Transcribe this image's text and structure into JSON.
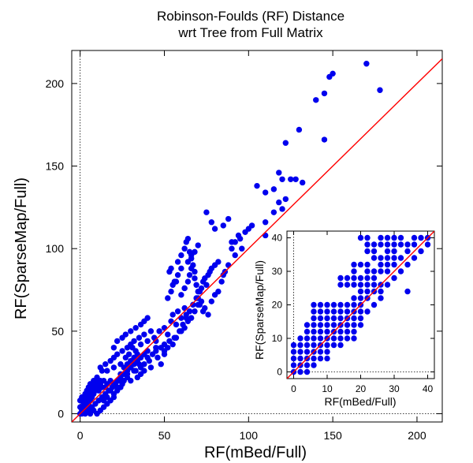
{
  "chart_data": {
    "type": "scatter",
    "title": "Robinson-Foulds (RF) Distance",
    "subtitle": "wrt Tree from Full Matrix",
    "xlabel": "RF(mBed/Full)",
    "ylabel": "RF(SparseMap/Full)",
    "xlim": [
      -5,
      215
    ],
    "ylim": [
      -5,
      220
    ],
    "xticks": [
      0,
      50,
      100,
      150,
      200
    ],
    "yticks": [
      0,
      50,
      100,
      150,
      200
    ],
    "grid": false,
    "zero_lines": "dotted",
    "point_color": "#0000ee",
    "reference_line": {
      "type": "y=x",
      "color": "#ff0000"
    },
    "points": [
      [
        0,
        0
      ],
      [
        1,
        2
      ],
      [
        2,
        4
      ],
      [
        2,
        6
      ],
      [
        3,
        8
      ],
      [
        4,
        10
      ],
      [
        5,
        12
      ],
      [
        6,
        14
      ],
      [
        7,
        16
      ],
      [
        8,
        18
      ],
      [
        9,
        18
      ],
      [
        10,
        20
      ],
      [
        3,
        2
      ],
      [
        4,
        4
      ],
      [
        5,
        6
      ],
      [
        6,
        8
      ],
      [
        7,
        10
      ],
      [
        8,
        12
      ],
      [
        9,
        14
      ],
      [
        10,
        16
      ],
      [
        11,
        14
      ],
      [
        12,
        18
      ],
      [
        13,
        16
      ],
      [
        14,
        20
      ],
      [
        1,
        0
      ],
      [
        3,
        0
      ],
      [
        5,
        2
      ],
      [
        7,
        4
      ],
      [
        9,
        6
      ],
      [
        11,
        8
      ],
      [
        13,
        10
      ],
      [
        15,
        12
      ],
      [
        17,
        14
      ],
      [
        19,
        16
      ],
      [
        21,
        18
      ],
      [
        23,
        20
      ],
      [
        2,
        10
      ],
      [
        3,
        12
      ],
      [
        4,
        14
      ],
      [
        5,
        16
      ],
      [
        6,
        18
      ],
      [
        8,
        20
      ],
      [
        10,
        18
      ],
      [
        12,
        20
      ],
      [
        15,
        16
      ],
      [
        16,
        18
      ],
      [
        18,
        20
      ],
      [
        20,
        12
      ],
      [
        22,
        16
      ],
      [
        24,
        22
      ],
      [
        26,
        24
      ],
      [
        28,
        26
      ],
      [
        30,
        28
      ],
      [
        32,
        30
      ],
      [
        34,
        32
      ],
      [
        36,
        34
      ],
      [
        38,
        36
      ],
      [
        40,
        38
      ],
      [
        14,
        8
      ],
      [
        16,
        10
      ],
      [
        18,
        14
      ],
      [
        20,
        18
      ],
      [
        22,
        20
      ],
      [
        24,
        24
      ],
      [
        26,
        28
      ],
      [
        28,
        30
      ],
      [
        30,
        32
      ],
      [
        32,
        34
      ],
      [
        34,
        36
      ],
      [
        12,
        28
      ],
      [
        15,
        30
      ],
      [
        18,
        32
      ],
      [
        20,
        34
      ],
      [
        22,
        36
      ],
      [
        25,
        38
      ],
      [
        28,
        40
      ],
      [
        30,
        42
      ],
      [
        32,
        44
      ],
      [
        35,
        46
      ],
      [
        38,
        48
      ],
      [
        10,
        22
      ],
      [
        13,
        26
      ],
      [
        16,
        26
      ],
      [
        20,
        28
      ],
      [
        24,
        30
      ],
      [
        27,
        34
      ],
      [
        29,
        36
      ],
      [
        31,
        40
      ],
      [
        33,
        38
      ],
      [
        36,
        42
      ],
      [
        40,
        44
      ],
      [
        25,
        18
      ],
      [
        28,
        22
      ],
      [
        30,
        20
      ],
      [
        33,
        26
      ],
      [
        36,
        28
      ],
      [
        38,
        30
      ],
      [
        41,
        32
      ],
      [
        43,
        36
      ],
      [
        45,
        38
      ],
      [
        48,
        40
      ],
      [
        50,
        42
      ],
      [
        20,
        40
      ],
      [
        22,
        44
      ],
      [
        25,
        46
      ],
      [
        27,
        48
      ],
      [
        30,
        50
      ],
      [
        33,
        52
      ],
      [
        36,
        54
      ],
      [
        38,
        56
      ],
      [
        40,
        58
      ],
      [
        42,
        50
      ],
      [
        44,
        46
      ],
      [
        45,
        44
      ],
      [
        47,
        50
      ],
      [
        50,
        52
      ],
      [
        52,
        48
      ],
      [
        54,
        56
      ],
      [
        55,
        60
      ],
      [
        57,
        54
      ],
      [
        58,
        62
      ],
      [
        60,
        58
      ],
      [
        62,
        64
      ],
      [
        63,
        60
      ],
      [
        48,
        30
      ],
      [
        50,
        36
      ],
      [
        52,
        40
      ],
      [
        55,
        42
      ],
      [
        57,
        46
      ],
      [
        60,
        50
      ],
      [
        62,
        52
      ],
      [
        64,
        56
      ],
      [
        66,
        58
      ],
      [
        68,
        62
      ],
      [
        70,
        66
      ],
      [
        52,
        70
      ],
      [
        54,
        74
      ],
      [
        55,
        78
      ],
      [
        57,
        80
      ],
      [
        58,
        84
      ],
      [
        60,
        72
      ],
      [
        62,
        76
      ],
      [
        64,
        80
      ],
      [
        65,
        84
      ],
      [
        66,
        88
      ],
      [
        68,
        86
      ],
      [
        70,
        70
      ],
      [
        71,
        74
      ],
      [
        72,
        76
      ],
      [
        73,
        80
      ],
      [
        74,
        82
      ],
      [
        75,
        78
      ],
      [
        76,
        84
      ],
      [
        77,
        86
      ],
      [
        78,
        88
      ],
      [
        80,
        90
      ],
      [
        82,
        92
      ],
      [
        53,
        86
      ],
      [
        54,
        88
      ],
      [
        56,
        80
      ],
      [
        58,
        92
      ],
      [
        60,
        96
      ],
      [
        62,
        100
      ],
      [
        63,
        104
      ],
      [
        64,
        106
      ],
      [
        65,
        98
      ],
      [
        66,
        94
      ],
      [
        67,
        90
      ],
      [
        68,
        82
      ],
      [
        69,
        78
      ],
      [
        70,
        74
      ],
      [
        71,
        66
      ],
      [
        72,
        68
      ],
      [
        73,
        62
      ],
      [
        74,
        64
      ],
      [
        76,
        60
      ],
      [
        78,
        68
      ],
      [
        80,
        72
      ],
      [
        82,
        74
      ],
      [
        84,
        80
      ],
      [
        85,
        84
      ],
      [
        86,
        86
      ],
      [
        88,
        90
      ],
      [
        90,
        100
      ],
      [
        92,
        104
      ],
      [
        94,
        108
      ],
      [
        96,
        100
      ],
      [
        75,
        122
      ],
      [
        78,
        116
      ],
      [
        80,
        112
      ],
      [
        85,
        114
      ],
      [
        88,
        118
      ],
      [
        90,
        104
      ],
      [
        92,
        96
      ],
      [
        95,
        106
      ],
      [
        98,
        110
      ],
      [
        100,
        112
      ],
      [
        102,
        114
      ],
      [
        110,
        116
      ],
      [
        110,
        108
      ],
      [
        115,
        122
      ],
      [
        118,
        128
      ],
      [
        120,
        124
      ],
      [
        122,
        130
      ],
      [
        105,
        138
      ],
      [
        110,
        134
      ],
      [
        115,
        136
      ],
      [
        118,
        146
      ],
      [
        120,
        142
      ],
      [
        122,
        164
      ],
      [
        125,
        142
      ],
      [
        128,
        142
      ],
      [
        130,
        172
      ],
      [
        132,
        140
      ],
      [
        140,
        190
      ],
      [
        145,
        194
      ],
      [
        145,
        166
      ],
      [
        148,
        204
      ],
      [
        150,
        206
      ],
      [
        170,
        212
      ],
      [
        178,
        196
      ],
      [
        45,
        40
      ],
      [
        40,
        34
      ],
      [
        35,
        30
      ],
      [
        32,
        26
      ],
      [
        28,
        24
      ],
      [
        26,
        20
      ],
      [
        24,
        16
      ],
      [
        22,
        14
      ],
      [
        20,
        10
      ],
      [
        18,
        8
      ],
      [
        16,
        6
      ],
      [
        14,
        4
      ],
      [
        12,
        2
      ],
      [
        10,
        0
      ],
      [
        8,
        2
      ],
      [
        6,
        0
      ],
      [
        4,
        6
      ],
      [
        2,
        8
      ],
      [
        1,
        10
      ],
      [
        0,
        4
      ],
      [
        0,
        8
      ],
      [
        34,
        22
      ],
      [
        36,
        24
      ],
      [
        38,
        26
      ],
      [
        42,
        28
      ],
      [
        46,
        34
      ],
      [
        50,
        38
      ],
      [
        53,
        44
      ],
      [
        56,
        46
      ],
      [
        59,
        50
      ],
      [
        61,
        54
      ],
      [
        63,
        58
      ],
      [
        65,
        62
      ],
      [
        67,
        66
      ],
      [
        69,
        70
      ],
      [
        62,
        76
      ],
      [
        60,
        88
      ],
      [
        64,
        92
      ],
      [
        66,
        96
      ],
      [
        68,
        98
      ],
      [
        70,
        102
      ]
    ],
    "inset": {
      "type": "scatter",
      "xlabel": "RF(mBed/Full)",
      "ylabel": "RF(SparseMap/Full)",
      "xlim": [
        -2,
        42
      ],
      "ylim": [
        -2,
        42
      ],
      "xticks": [
        0,
        10,
        20,
        30,
        40
      ],
      "yticks": [
        0,
        10,
        20,
        30,
        40
      ],
      "points": [
        [
          0,
          0
        ],
        [
          0,
          2
        ],
        [
          0,
          4
        ],
        [
          0,
          6
        ],
        [
          0,
          8
        ],
        [
          2,
          0
        ],
        [
          2,
          2
        ],
        [
          2,
          4
        ],
        [
          2,
          6
        ],
        [
          2,
          8
        ],
        [
          2,
          10
        ],
        [
          4,
          0
        ],
        [
          4,
          2
        ],
        [
          4,
          4
        ],
        [
          4,
          6
        ],
        [
          4,
          8
        ],
        [
          4,
          10
        ],
        [
          4,
          12
        ],
        [
          4,
          14
        ],
        [
          6,
          2
        ],
        [
          6,
          4
        ],
        [
          6,
          6
        ],
        [
          6,
          8
        ],
        [
          6,
          10
        ],
        [
          6,
          12
        ],
        [
          6,
          14
        ],
        [
          6,
          16
        ],
        [
          6,
          18
        ],
        [
          6,
          20
        ],
        [
          8,
          4
        ],
        [
          8,
          6
        ],
        [
          8,
          8
        ],
        [
          8,
          10
        ],
        [
          8,
          12
        ],
        [
          8,
          14
        ],
        [
          8,
          16
        ],
        [
          8,
          18
        ],
        [
          8,
          20
        ],
        [
          10,
          8
        ],
        [
          10,
          10
        ],
        [
          10,
          12
        ],
        [
          10,
          14
        ],
        [
          10,
          16
        ],
        [
          10,
          18
        ],
        [
          10,
          20
        ],
        [
          12,
          8
        ],
        [
          12,
          10
        ],
        [
          12,
          12
        ],
        [
          12,
          14
        ],
        [
          12,
          16
        ],
        [
          12,
          18
        ],
        [
          12,
          20
        ],
        [
          14,
          10
        ],
        [
          14,
          12
        ],
        [
          14,
          14
        ],
        [
          14,
          16
        ],
        [
          14,
          18
        ],
        [
          14,
          20
        ],
        [
          14,
          26
        ],
        [
          14,
          28
        ],
        [
          16,
          12
        ],
        [
          16,
          14
        ],
        [
          16,
          16
        ],
        [
          16,
          18
        ],
        [
          16,
          20
        ],
        [
          16,
          26
        ],
        [
          16,
          28
        ],
        [
          18,
          10
        ],
        [
          18,
          14
        ],
        [
          18,
          16
        ],
        [
          18,
          18
        ],
        [
          18,
          20
        ],
        [
          18,
          22
        ],
        [
          18,
          26
        ],
        [
          18,
          28
        ],
        [
          18,
          30
        ],
        [
          18,
          32
        ],
        [
          20,
          16
        ],
        [
          20,
          18
        ],
        [
          20,
          20
        ],
        [
          20,
          22
        ],
        [
          20,
          24
        ],
        [
          20,
          26
        ],
        [
          20,
          28
        ],
        [
          20,
          32
        ],
        [
          20,
          40
        ],
        [
          22,
          22
        ],
        [
          22,
          24
        ],
        [
          22,
          26
        ],
        [
          22,
          28
        ],
        [
          22,
          30
        ],
        [
          22,
          32
        ],
        [
          22,
          36
        ],
        [
          22,
          38
        ],
        [
          22,
          40
        ],
        [
          24,
          24
        ],
        [
          24,
          26
        ],
        [
          24,
          28
        ],
        [
          24,
          30
        ],
        [
          24,
          34
        ],
        [
          24,
          36
        ],
        [
          24,
          38
        ],
        [
          26,
          24
        ],
        [
          26,
          26
        ],
        [
          26,
          30
        ],
        [
          26,
          32
        ],
        [
          26,
          34
        ],
        [
          26,
          38
        ],
        [
          26,
          40
        ],
        [
          28,
          30
        ],
        [
          28,
          32
        ],
        [
          28,
          34
        ],
        [
          28,
          36
        ],
        [
          28,
          38
        ],
        [
          28,
          40
        ],
        [
          30,
          32
        ],
        [
          30,
          34
        ],
        [
          30,
          36
        ],
        [
          30,
          38
        ],
        [
          30,
          40
        ],
        [
          32,
          34
        ],
        [
          32,
          38
        ],
        [
          32,
          40
        ],
        [
          34,
          24
        ],
        [
          34,
          36
        ],
        [
          34,
          38
        ],
        [
          36,
          38
        ],
        [
          36,
          40
        ],
        [
          38,
          40
        ],
        [
          10,
          4
        ],
        [
          10,
          6
        ],
        [
          14,
          8
        ],
        [
          16,
          10
        ],
        [
          18,
          12
        ],
        [
          20,
          14
        ],
        [
          22,
          18
        ],
        [
          24,
          20
        ],
        [
          26,
          22
        ],
        [
          28,
          26
        ],
        [
          30,
          28
        ],
        [
          32,
          30
        ],
        [
          34,
          32
        ],
        [
          36,
          34
        ],
        [
          38,
          36
        ],
        [
          40,
          38
        ],
        [
          40,
          40
        ]
      ]
    }
  }
}
